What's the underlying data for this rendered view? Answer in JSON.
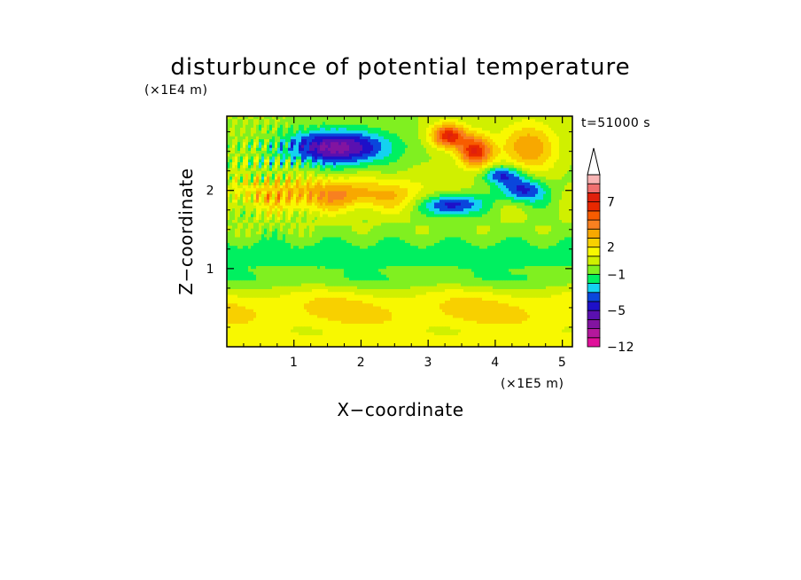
{
  "chart_data": {
    "type": "heatmap",
    "title": "disturbunce of potential temperature",
    "xlabel": "X−coordinate",
    "ylabel": "Z−coordinate",
    "x_unit": "(×1E5 m)",
    "y_unit": "(×1E4 m)",
    "time_label": "t=51000 s",
    "xlim": [
      0,
      5.15
    ],
    "ylim": [
      0,
      2.95
    ],
    "x_ticks": [
      1,
      2,
      3,
      4,
      5
    ],
    "y_ticks": [
      1,
      2
    ],
    "x_tick_labels": [
      "1",
      "2",
      "3",
      "4",
      "5"
    ],
    "y_tick_labels": [
      "1",
      "2"
    ],
    "colorbar": {
      "extend": "max",
      "levels": [
        -12,
        -10,
        -8,
        -6,
        -5,
        -4,
        -3,
        -2,
        -1,
        0,
        1,
        2,
        3,
        4,
        5,
        6,
        7,
        8,
        9,
        10
      ],
      "labels": [
        {
          "value": -12,
          "text": "−12"
        },
        {
          "value": -5,
          "text": "−5"
        },
        {
          "value": -1,
          "text": "−1"
        },
        {
          "value": 2,
          "text": "2"
        },
        {
          "value": 7,
          "text": "7"
        }
      ],
      "colors": [
        "#e0109a",
        "#b4189c",
        "#8214a0",
        "#5a10b0",
        "#1e10c8",
        "#0a46dc",
        "#14d2f0",
        "#00f060",
        "#80f020",
        "#d0f000",
        "#f8f800",
        "#f8d000",
        "#f8a800",
        "#f88020",
        "#f85c00",
        "#e82800",
        "#e0200c",
        "#f07070",
        "#f8b4b4",
        "#ffffff"
      ]
    },
    "field_features": [
      {
        "kind": "low",
        "center": [
          1.65,
          2.55
        ],
        "radius": [
          0.75,
          0.22
        ],
        "peak": -6.5,
        "note": "blue band"
      },
      {
        "kind": "low",
        "center": [
          3.35,
          1.82
        ],
        "radius": [
          0.4,
          0.14
        ],
        "peak": -5.5
      },
      {
        "kind": "low",
        "center": [
          4.4,
          2.0
        ],
        "radius": [
          0.35,
          0.16
        ],
        "peak": -4.5
      },
      {
        "kind": "low",
        "center": [
          4.1,
          2.2
        ],
        "radius": [
          0.3,
          0.12
        ],
        "peak": -4.0
      },
      {
        "kind": "high",
        "center": [
          3.3,
          2.7
        ],
        "radius": [
          0.25,
          0.15
        ],
        "peak": 7.0
      },
      {
        "kind": "high",
        "center": [
          3.7,
          2.5
        ],
        "radius": [
          0.25,
          0.2
        ],
        "peak": 7.0
      },
      {
        "kind": "high",
        "center": [
          4.5,
          2.55
        ],
        "radius": [
          0.4,
          0.3
        ],
        "peak": 4.0
      },
      {
        "kind": "high",
        "center": [
          1.6,
          1.95
        ],
        "radius": [
          1.4,
          0.2
        ],
        "peak": 4.0
      },
      {
        "kind": "band",
        "z": 1.15,
        "value": -1.0,
        "note": "green/cyan layer"
      },
      {
        "kind": "band",
        "z": 0.55,
        "value": 2.0,
        "note": "yellow layer"
      }
    ]
  }
}
